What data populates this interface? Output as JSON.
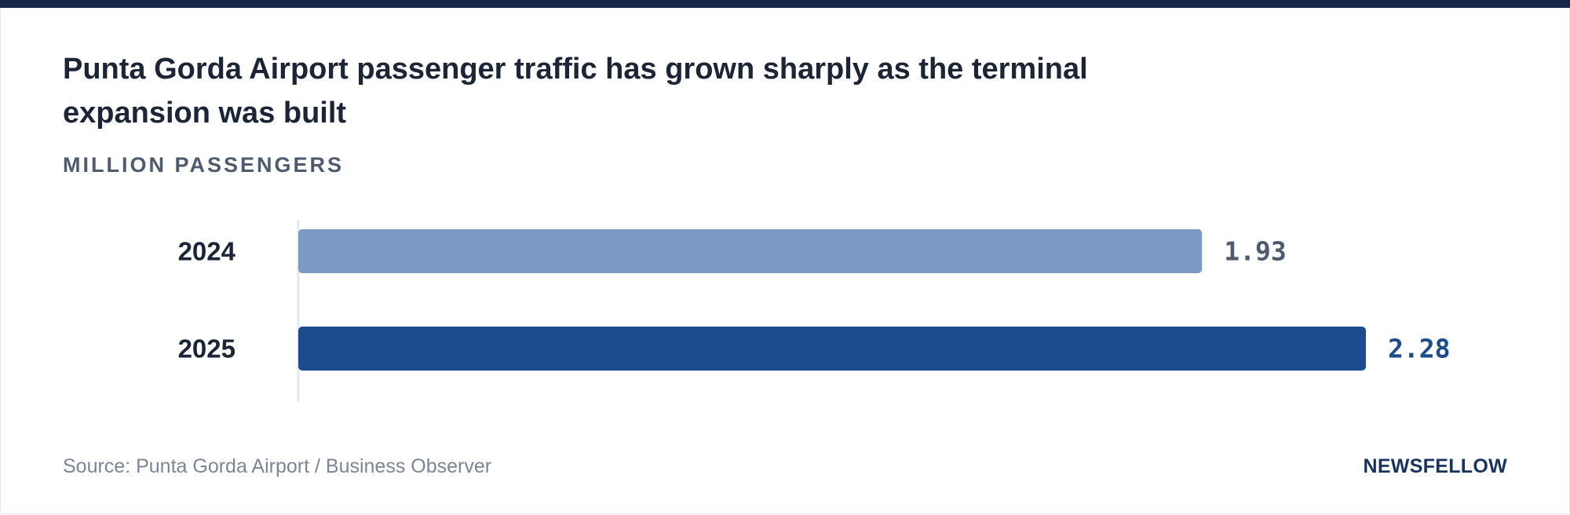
{
  "header": {
    "title": "Punta Gorda Airport passenger traffic has grown sharply as the terminal expansion was built",
    "subtitle": "MILLION PASSENGERS"
  },
  "footer": {
    "source": "Source: Punta Gorda Airport / Business Observer",
    "brand": "NEWSFELLOW"
  },
  "colors": {
    "top_rule": "#16284a",
    "bar_2024": "#7b9ac4",
    "bar_2025": "#1c4c8e",
    "label_2024": "#4e5a6e",
    "label_2025": "#1c4c8e",
    "axis": "#e3e6ea"
  },
  "chart_data": {
    "type": "bar",
    "orientation": "horizontal",
    "title": "Punta Gorda Airport passenger traffic has grown sharply as the terminal expansion was built",
    "subtitle": "MILLION PASSENGERS",
    "categories": [
      "2024",
      "2025"
    ],
    "values": [
      1.93,
      2.28
    ],
    "value_labels": [
      "1.93",
      "2.28"
    ],
    "xlim": [
      0,
      2.28
    ],
    "grid": false,
    "legend": "none"
  }
}
